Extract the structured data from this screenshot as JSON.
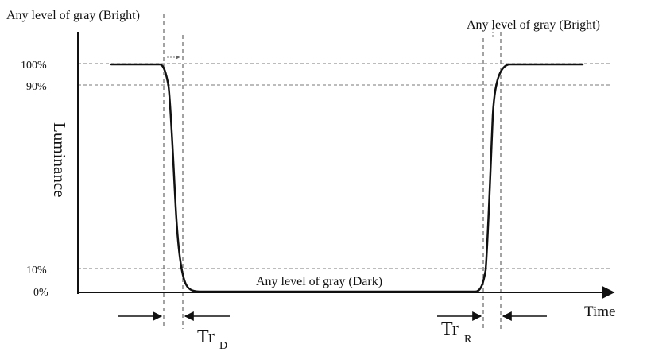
{
  "labels": {
    "top_left": "Any level of gray (Bright)",
    "top_right": "Any level of gray (Bright)",
    "dark_label": "Any level of gray (Dark)",
    "y_axis": "Luminance",
    "x_axis": "Time",
    "tr_d_main": "Tr",
    "tr_d_sub": "D",
    "tr_r_main": "Tr",
    "tr_r_sub": "R"
  },
  "levels": {
    "pct_100": "100%",
    "pct_90": "90%",
    "pct_10": "10%",
    "pct_0": "0%"
  }
}
